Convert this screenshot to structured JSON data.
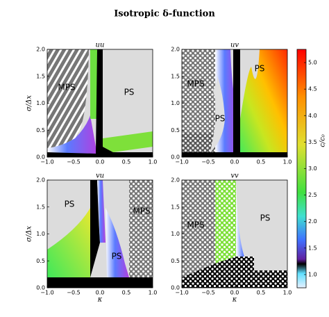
{
  "title": "Isotropic δ-function",
  "chart_data": [
    {
      "type": "heatmap",
      "title": "uu",
      "ylabel": "σ/Δx",
      "xlim": [
        -1,
        1
      ],
      "ylim": [
        0,
        2
      ],
      "xticks": [
        {
          "value": -1,
          "label": "−1.0"
        },
        {
          "value": -0.5,
          "label": "−0.5"
        },
        {
          "value": 0,
          "label": "0.0"
        },
        {
          "value": 0.5,
          "label": "0.5"
        },
        {
          "value": 1,
          "label": "1.0"
        }
      ],
      "yticks": [
        {
          "value": 0,
          "label": "0.0"
        },
        {
          "value": 0.5,
          "label": "0.5"
        },
        {
          "value": 1,
          "label": "1.0"
        },
        {
          "value": 1.5,
          "label": "1.5"
        },
        {
          "value": 2,
          "label": "2.0"
        }
      ],
      "annotations": [
        "MPS",
        "PS"
      ]
    },
    {
      "type": "heatmap",
      "title": "uv",
      "xlim": [
        -1,
        1
      ],
      "ylim": [
        0,
        2
      ],
      "xticks": [
        {
          "value": -1,
          "label": "−1.0"
        },
        {
          "value": -0.5,
          "label": "−0.5"
        },
        {
          "value": 0,
          "label": "0.0"
        },
        {
          "value": 0.5,
          "label": "0.5"
        },
        {
          "value": 1,
          "label": "1.0"
        }
      ],
      "yticks": [
        {
          "value": 0,
          "label": "0.0"
        },
        {
          "value": 0.5,
          "label": "0.5"
        },
        {
          "value": 1,
          "label": "1.0"
        },
        {
          "value": 1.5,
          "label": "1.5"
        },
        {
          "value": 2,
          "label": "2.0"
        }
      ],
      "annotations": [
        "MPS",
        "PS",
        "PS"
      ]
    },
    {
      "type": "heatmap",
      "title": "vu",
      "xlabel": "κ",
      "ylabel": "σ/Δx",
      "xlim": [
        -1,
        1
      ],
      "ylim": [
        0,
        2
      ],
      "xticks": [
        {
          "value": -1,
          "label": "−1.0"
        },
        {
          "value": -0.5,
          "label": "−0.5"
        },
        {
          "value": 0,
          "label": "0.0"
        },
        {
          "value": 0.5,
          "label": "0.5"
        },
        {
          "value": 1,
          "label": "1.0"
        }
      ],
      "yticks": [
        {
          "value": 0,
          "label": "0.0"
        },
        {
          "value": 0.5,
          "label": "0.5"
        },
        {
          "value": 1,
          "label": "1.0"
        },
        {
          "value": 1.5,
          "label": "1.5"
        },
        {
          "value": 2,
          "label": "2.0"
        }
      ],
      "annotations": [
        "PS",
        "MPS",
        "PS"
      ]
    },
    {
      "type": "heatmap",
      "title": "vv",
      "xlabel": "κ",
      "xlim": [
        -1,
        1
      ],
      "ylim": [
        0,
        2
      ],
      "xticks": [
        {
          "value": -1,
          "label": "−1.0"
        },
        {
          "value": -0.5,
          "label": "−0.5"
        },
        {
          "value": 0,
          "label": "0.0"
        },
        {
          "value": 0.5,
          "label": "0.5"
        },
        {
          "value": 1,
          "label": "1.0"
        }
      ],
      "yticks": [
        {
          "value": 0,
          "label": "0.0"
        },
        {
          "value": 0.5,
          "label": "0.5"
        },
        {
          "value": 1,
          "label": "1.0"
        },
        {
          "value": 1.5,
          "label": "1.5"
        },
        {
          "value": 2,
          "label": "2.0"
        }
      ],
      "annotations": [
        "MPS",
        "PS"
      ]
    }
  ],
  "colorbar": {
    "label": "c/c₀",
    "lim": [
      0.75,
      5.25
    ],
    "ticks": [
      {
        "value": 1,
        "label": "1.0"
      },
      {
        "value": 1.5,
        "label": "1.5"
      },
      {
        "value": 2,
        "label": "2.0"
      },
      {
        "value": 2.5,
        "label": "2.5"
      },
      {
        "value": 3,
        "label": "3.0"
      },
      {
        "value": 3.5,
        "label": "3.5"
      },
      {
        "value": 4,
        "label": "4.0"
      },
      {
        "value": 4.5,
        "label": "4.5"
      },
      {
        "value": 5,
        "label": "5.0"
      }
    ]
  }
}
